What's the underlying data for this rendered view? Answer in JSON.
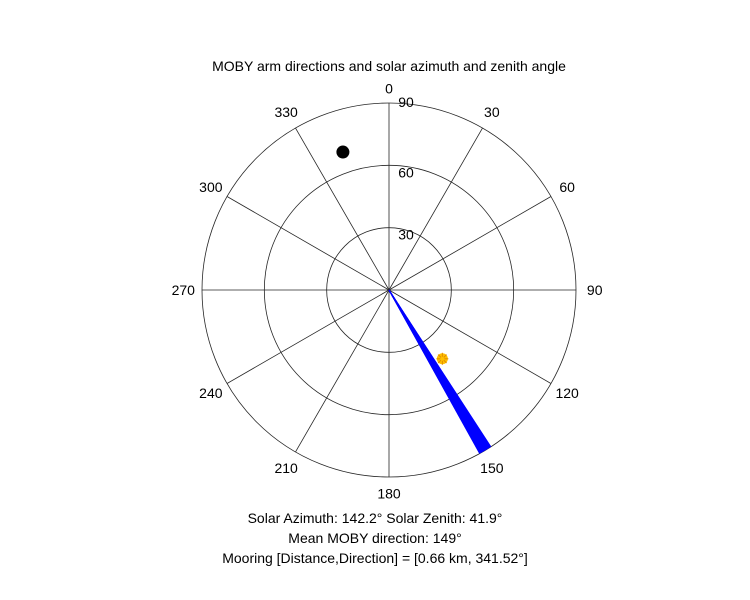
{
  "chart_data": {
    "type": "polar",
    "title": "MOBY arm directions and solar azimuth and zenith angle",
    "theta_direction": "clockwise",
    "theta_zero": "top",
    "r_max": 90,
    "r_ticks": [
      "30",
      "60",
      "90"
    ],
    "theta_tick_labels": [
      "0",
      "30",
      "60",
      "90",
      "120",
      "150",
      "180",
      "210",
      "240",
      "270",
      "300",
      "330"
    ],
    "grid": true,
    "mooring_marker": {
      "theta": 341.52,
      "r": 70
    },
    "solar_marker": {
      "theta": 142.2,
      "r": 41.9
    },
    "moby_arm_directions": {
      "start_deg": 147,
      "end_deg": 151,
      "count": 40,
      "r": 90
    },
    "colors": {
      "arms": "#0000ff",
      "sun": "#ffc000",
      "mooring": "#000000",
      "grid": "#262626"
    }
  },
  "footer": {
    "line1": "Solar Azimuth: 142.2°    Solar Zenith: 41.9°",
    "line2": "Mean MOBY direction: 149°",
    "line3": "Mooring [Distance,Direction] = [0.66 km, 341.52°]"
  }
}
